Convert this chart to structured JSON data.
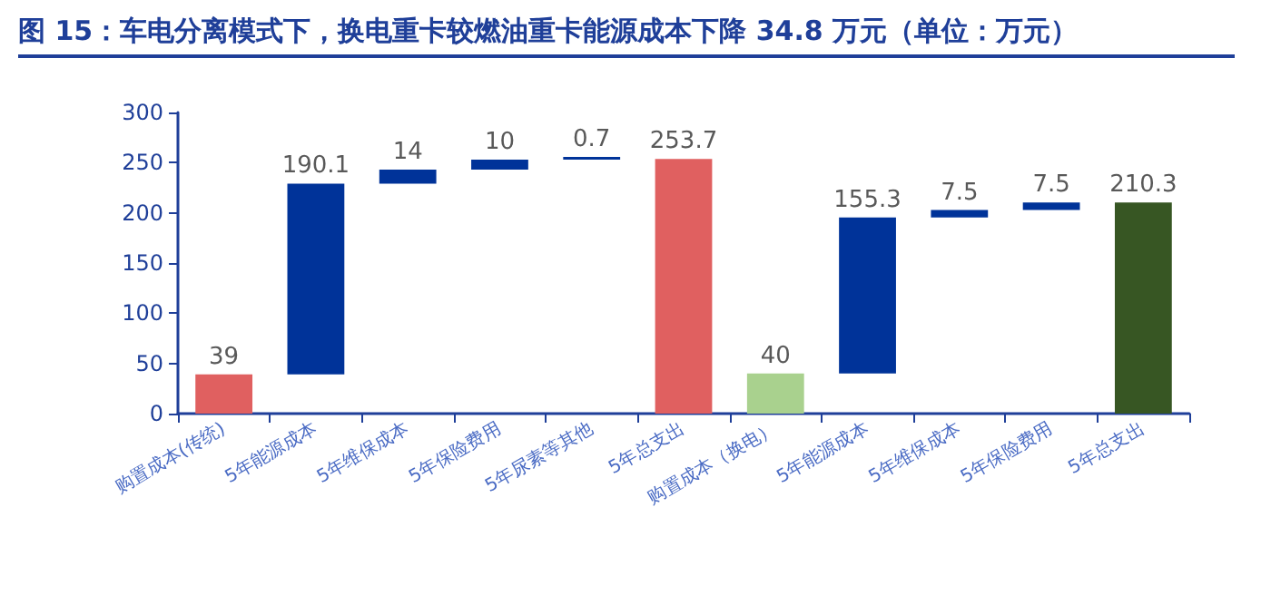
{
  "chart_data": {
    "type": "bar",
    "title": "图 15：车电分离模式下，换电重卡较燃油重卡能源成本下降 34.8 万元（单位：万元）",
    "categories": [
      "购置成本(传统)",
      "5年能源成本",
      "5年维保成本",
      "5年保险费用",
      "5年尿素等其他",
      "5年总支出",
      "购置成本（换电）",
      "5年能源成本",
      "5年维保成本",
      "5年保险费用",
      "5年总支出"
    ],
    "values": [
      39,
      190.1,
      14,
      10,
      0.7,
      253.7,
      40,
      155.3,
      7.5,
      7.5,
      210.3
    ],
    "base": [
      0,
      39,
      229.1,
      243.1,
      253.0,
      0,
      0,
      40,
      195.3,
      202.8,
      0
    ],
    "colors": [
      "#e06060",
      "#003399",
      "#003399",
      "#003399",
      "#003399",
      "#e06060",
      "#a9d18e",
      "#003399",
      "#003399",
      "#003399",
      "#375623"
    ],
    "ylim": [
      0,
      300
    ],
    "yticks": [
      0,
      50,
      100,
      150,
      200,
      250,
      300
    ],
    "data_labels": true,
    "grid": false
  }
}
